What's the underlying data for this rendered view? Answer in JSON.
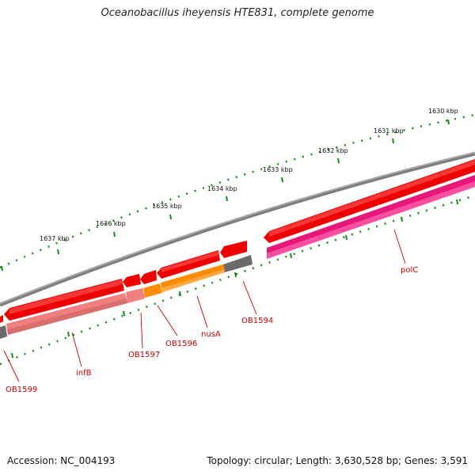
{
  "title": "Oceanobacillus iheyensis HTE831, complete genome",
  "accession": "Accession: NC_004193",
  "stats": "Topology: circular; Length: 3,630,528 bp; Genes: 3,591",
  "kbp_ticks": [
    "1630 kbp",
    "1631 kbp",
    "1632 kbp",
    "1633 kbp",
    "1634 kbp",
    "1635 kbp",
    "1636 kbp",
    "1637 kbp"
  ],
  "gene_labels": [
    "polC",
    "OB1594",
    "nusA",
    "OB1596",
    "OB1597",
    "infB",
    "OB1599"
  ],
  "colors": {
    "backbone": "#7f7f7f",
    "forward_cds": "#ee0000",
    "reverse_infB": "#f08080",
    "reverse_nusA": "#ff8c00",
    "reverse_polC": "#e8187a",
    "reverse_grey": "#6a6a6a",
    "tick": "#1a8a1a",
    "label": "#cc0000"
  }
}
